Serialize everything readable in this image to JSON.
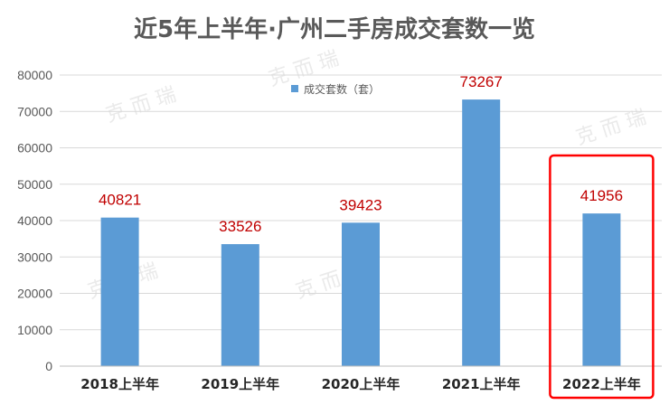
{
  "chart_data": {
    "type": "bar",
    "title": "近5年上半年·广州二手房成交套数一览",
    "categories": [
      "2018上半年",
      "2019上半年",
      "2020上半年",
      "2021上半年",
      "2022上半年"
    ],
    "series": [
      {
        "name": "成交套数（套）",
        "values": [
          40821,
          33526,
          39423,
          73267,
          41956
        ],
        "color": "#5b9bd5"
      }
    ],
    "data_labels": [
      "40821",
      "33526",
      "39423",
      "73267",
      "41956"
    ],
    "xlabel": "",
    "ylabel": "",
    "ylim": [
      0,
      80000
    ],
    "yticks": [
      "0",
      "10000",
      "20000",
      "30000",
      "40000",
      "50000",
      "60000",
      "70000",
      "80000"
    ],
    "grid": true,
    "legend_position": "top-center",
    "highlight_category": "2022上半年",
    "highlight_color": "#ff0000",
    "data_label_color": "#c00000",
    "watermark_text": "克 而 瑞"
  }
}
